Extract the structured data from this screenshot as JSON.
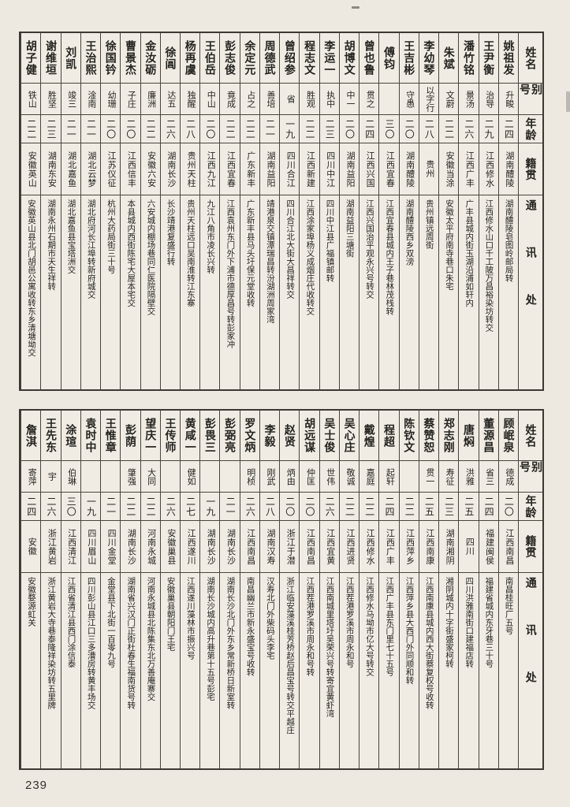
{
  "page": {
    "number": "239"
  },
  "colors": {
    "paper": "#ede9e1",
    "table_bg": "#f0ece4",
    "ink": "#262420",
    "border": "#49453d"
  },
  "headers": {
    "name": "姓名",
    "alias": "别号",
    "age": "年龄",
    "origin": "籍贯",
    "address": "通讯处"
  },
  "tables": [
    {
      "entries": [
        {
          "name": "姚祖发",
          "alias": "升畯",
          "age": "二四",
          "origin": "湖南醴陵",
          "address": "湖南醴陵皂图岭邮局转"
        },
        {
          "name": "王尹衡",
          "alias": "治导",
          "age": "二九",
          "origin": "江西修水",
          "address": "江西修水山口千工陂万昌裕染坊转交"
        },
        {
          "name": "潘竹铭",
          "alias": "景汤",
          "age": "二六",
          "origin": "江西广丰",
          "address": "广丰县城内街玉湖沿浦如轩内"
        },
        {
          "name": "朱斌",
          "alias": "文蔚",
          "age": "二二",
          "origin": "安徽当涂",
          "address": "安徽太平府南寺巷口朱宅"
        },
        {
          "name": "李幼琴",
          "alias": "以字行",
          "age": "二八",
          "origin": "贵州",
          "address": "贵州镇远周街"
        },
        {
          "name": "王吉彬",
          "alias": "守愚",
          "age": "二〇",
          "origin": "湖南醴陵",
          "address": "湖南醴陵西乡双滂"
        },
        {
          "name": "傅钧",
          "alias": "",
          "age": "三〇",
          "origin": "江西宜春",
          "address": "江西宜春县城内王子巷林茂栈转"
        },
        {
          "name": "曾也鲁",
          "alias": "贯之",
          "age": "二四",
          "origin": "江西兴国",
          "address": "江西兴国治平观永兴号转交"
        },
        {
          "name": "胡博文",
          "alias": "中一",
          "age": "二〇",
          "origin": "湖南益阳",
          "address": "湖南益阳三塘街"
        },
        {
          "name": "李运一",
          "alias": "执中",
          "age": "二三",
          "origin": "四川中江",
          "address": "四川中江县广福镇邮转"
        },
        {
          "name": "程志文",
          "alias": "胜观",
          "age": "二二",
          "origin": "江西新建",
          "address": "江西涂家埠杨义成烟庄代收转交"
        },
        {
          "name": "曾绍参",
          "alias": "省",
          "age": "一九",
          "origin": "四川合江",
          "address": "四川合江北大街大昌祥转交"
        },
        {
          "name": "周德武",
          "alias": "善培",
          "age": "二一",
          "origin": "湖南益阳",
          "address": "靖港泉交镇潭瑞昌转汾湖洲周家湾"
        },
        {
          "name": "余定元",
          "alias": "占之",
          "age": "二二",
          "origin": "广东新丰",
          "address": "广东新丰县马头圩保元堂收转"
        },
        {
          "name": "彭志俊",
          "alias": "竟成",
          "age": "二二",
          "origin": "江西宜春",
          "address": "江西袁州东门外下浦市德厚昌号转彭家冲"
        },
        {
          "name": "王伯岳",
          "alias": "中山",
          "age": "二〇",
          "origin": "江西九江",
          "address": "九江八角市凌长兴转"
        },
        {
          "name": "杨再虞",
          "alias": "独醒",
          "age": "二八",
          "origin": "贵州天柱",
          "address": "贵州天柱远口吴南淮转江东寨"
        },
        {
          "name": "徐阊",
          "alias": "达五",
          "age": "二六",
          "origin": "湖南长沙",
          "address": "长沙靖港复盛行转"
        },
        {
          "name": "金汝砺",
          "alias": "廉洲",
          "age": "二二",
          "origin": "安徽六安",
          "address": "六安城内棚场巷同仁医院隔壁交"
        },
        {
          "name": "曹景杰",
          "alias": "子庄",
          "age": "二〇",
          "origin": "江西信丰",
          "address": "本县城内西街陈宅大屋本宅交"
        },
        {
          "name": "徐国钤",
          "alias": "幼珊",
          "age": "二〇",
          "origin": "江苏仪征",
          "address": "杭州大药局街三十号"
        },
        {
          "name": "王治熙",
          "alias": "淦南",
          "age": "二一",
          "origin": "湖北云梦",
          "address": "湖北府河长江埠转新府城交"
        },
        {
          "name": "刘凯",
          "alias": "竣三",
          "age": "二一",
          "origin": "湖北嘉鱼",
          "address": "湖北嘉鱼县宝塔洲交"
        },
        {
          "name": "谢维垣",
          "alias": "胜坚",
          "age": "二三",
          "origin": "湖南东安",
          "address": "湖南永州石期市天生祥转"
        },
        {
          "name": "胡子健",
          "alias": "铁山",
          "age": "二二",
          "origin": "安徽英山",
          "address": "安徽英山县北门胡邑公寓收转东乡清塘坳交"
        }
      ]
    },
    {
      "entries": [
        {
          "name": "顾岷泉",
          "alias": "德成",
          "age": "二〇",
          "origin": "江西南昌",
          "address": "南昌桂旺厂五号"
        },
        {
          "name": "董源昌",
          "alias": "省三",
          "age": "二四",
          "origin": "福建闽侯",
          "address": "福建省城内东牙巷三十号"
        },
        {
          "name": "唐焖",
          "alias": "洪雅",
          "age": "二五",
          "origin": "四川",
          "address": "四川洪雅南街口建福店转"
        },
        {
          "name": "郑志刚",
          "alias": "寿征",
          "age": "二三",
          "origin": "湖南湘阴",
          "address": "湘阴城内十字街盛家柯转"
        },
        {
          "name": "蔡赞恕",
          "alias": "贯一",
          "age": "二五",
          "origin": "江西南康",
          "address": "江西南康县城内西大街蔡复权号收转"
        },
        {
          "name": "陈钦文",
          "alias": "",
          "age": "二二",
          "origin": "江西萍乡",
          "address": "江西萍乡县大西门外同顺和转"
        },
        {
          "name": "程超",
          "alias": "起轩",
          "age": "二四",
          "origin": "江西广丰",
          "address": "江西广丰县东门里七十五号"
        },
        {
          "name": "戴煌",
          "alias": "嘉庭",
          "age": "二二",
          "origin": "江西修水",
          "address": "江西修水马坳市亿大号转交"
        },
        {
          "name": "吴心庄",
          "alias": "敬诚",
          "age": "二二",
          "origin": "江西进贤",
          "address": "江西茬港罗溪市周永和号"
        },
        {
          "name": "吴士俊",
          "alias": "世伟",
          "age": "二六",
          "origin": "江西宜黄",
          "address": "江西南城里塔圩吴荣兴号转寄宜黄虾湾"
        },
        {
          "name": "胡远谋",
          "alias": "仲匡",
          "age": "二〇",
          "origin": "江西南昌",
          "address": "江西茬港罗溪市周永和号转"
        },
        {
          "name": "赵贤",
          "alias": "炳由",
          "age": "二〇",
          "origin": "浙江于潜",
          "address": "浙江临安藻溪桂芳桥赵后昌宝号转交平越庄"
        },
        {
          "name": "李毅",
          "alias": "刚武",
          "age": "二八",
          "origin": "湖南汉寿",
          "address": "汉寿北门外柴码头李宅"
        },
        {
          "name": "罗文炳",
          "alias": "明桢",
          "age": "二六",
          "origin": "江西南昌",
          "address": "南昌幽兰市新永盛宝号收转"
        },
        {
          "name": "彭弼亮",
          "alias": "",
          "age": "二一",
          "origin": "湖南长沙",
          "address": "湖南长沙北门外东乡常新桥日新室转"
        },
        {
          "name": "彭畏三",
          "alias": "",
          "age": "一九",
          "origin": "湖南长沙",
          "address": "湖南长沙城内高升巷第十五号彭宅"
        },
        {
          "name": "黄咸一",
          "alias": "健如",
          "age": "二七",
          "origin": "江西遂川",
          "address": "江西遂川藻林市振兴号"
        },
        {
          "name": "王传师",
          "alias": "",
          "age": "二六",
          "origin": "安徽巢县",
          "address": "安徽巢县朝阳门王宅"
        },
        {
          "name": "望庆一",
          "alias": "大同",
          "age": "二二",
          "origin": "河南永城",
          "address": "河南永城县北陈集东北万善庵寨交"
        },
        {
          "name": "彭荫",
          "alias": "肇强",
          "age": "二二",
          "origin": "湖南长沙",
          "address": "湖南省兴汉门正街杜春生福南货号转"
        },
        {
          "name": "王惟章",
          "alias": "",
          "age": "二一",
          "origin": "四川金堂",
          "address": "金堂县下北街一百零九号"
        },
        {
          "name": "袁时中",
          "alias": "",
          "age": "一九",
          "origin": "四川眉山",
          "address": "四川彭山县江口三多漕房转黄丰场交"
        },
        {
          "name": "涂瑄",
          "alias": "伯琳",
          "age": "三〇",
          "origin": "江西清江",
          "address": "江西省清江县西门涂信泰"
        },
        {
          "name": "王先东",
          "alias": "宇",
          "age": "二六",
          "origin": "浙江黄岩",
          "address": "浙江黄岩大寺巷泰隆祥染坊转五里牌"
        },
        {
          "name": "詹淇",
          "alias": "寄萍",
          "age": "二四",
          "origin": "安徽",
          "address": "安徽婺源虹关"
        }
      ]
    }
  ]
}
